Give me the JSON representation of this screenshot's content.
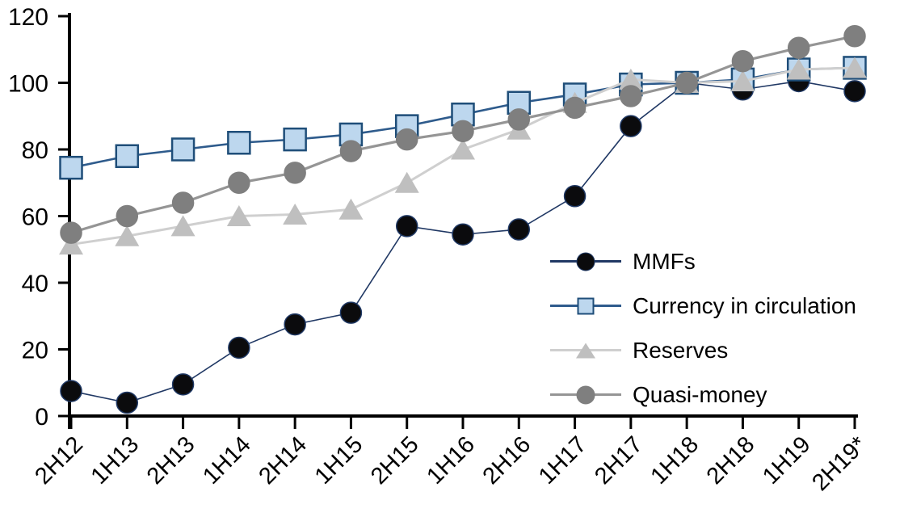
{
  "chart_data": {
    "type": "line",
    "title": "",
    "xlabel": "",
    "ylabel": "",
    "categories": [
      "2H12",
      "1H13",
      "2H13",
      "1H14",
      "2H14",
      "1H15",
      "2H15",
      "1H16",
      "2H16",
      "1H17",
      "2H17",
      "1H18",
      "2H18",
      "1H19",
      "2H19*"
    ],
    "series": [
      {
        "name": "MMFs",
        "marker": "circle",
        "marker_color": "#0b0b0d",
        "marker_edge": "#1f3864",
        "line_color": "#203864",
        "line_width": 1.6,
        "values": [
          7.5,
          4,
          9.5,
          20.5,
          27.5,
          31,
          57,
          54.5,
          56,
          66,
          87,
          100,
          98,
          100.5,
          97.5
        ]
      },
      {
        "name": "Currency in circulation",
        "marker": "square",
        "marker_color": "#bdd7ee",
        "marker_edge": "#1f4e79",
        "line_color": "#2e5b8c",
        "line_width": 2.6,
        "values": [
          74.5,
          78,
          80,
          82,
          83,
          84.5,
          87,
          90.5,
          94,
          96.5,
          99.5,
          100,
          101,
          104,
          104.5
        ]
      },
      {
        "name": "Reserves",
        "marker": "triangle",
        "marker_color": "#bfbfbf",
        "marker_edge": "#bfbfbf",
        "line_color": "#cfcfcf",
        "line_width": 3,
        "values": [
          51.5,
          54,
          57,
          60,
          60.5,
          62,
          70,
          80,
          86,
          94,
          101,
          100,
          100.5,
          104,
          104.5
        ]
      },
      {
        "name": "Quasi-money",
        "marker": "circle",
        "marker_color": "#7f7f7f",
        "marker_edge": "#7f7f7f",
        "line_color": "#959595",
        "line_width": 3.2,
        "values": [
          55,
          60,
          64,
          70,
          73,
          79.5,
          83,
          85.5,
          89,
          92.5,
          96,
          100,
          106.5,
          110.5,
          114
        ]
      }
    ],
    "ylim": [
      0,
      120
    ],
    "yticks": [
      0,
      20,
      40,
      60,
      80,
      100,
      120
    ],
    "grid": false,
    "legend_position": "inside-right",
    "axis_color": "#000000",
    "tick_label_color": "#000000",
    "background_color": "#ffffff"
  }
}
